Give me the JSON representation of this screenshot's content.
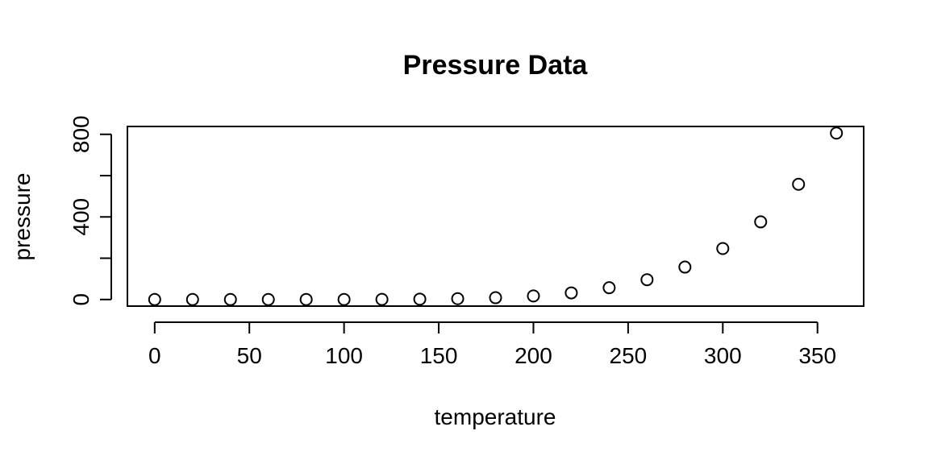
{
  "chart_data": {
    "type": "scatter",
    "title": "Pressure Data",
    "xlabel": "temperature",
    "ylabel": "pressure",
    "xlim": [
      -14.4,
      374.4
    ],
    "ylim": [
      -32.0,
      838.0
    ],
    "x_ticks": [
      0,
      50,
      100,
      150,
      200,
      250,
      300,
      350
    ],
    "y_ticks": [
      0,
      200,
      400,
      600,
      800
    ],
    "y_tick_labels": [
      "0",
      "",
      "400",
      "",
      "800"
    ],
    "grid": false,
    "legend": "none",
    "series": [
      {
        "x": [
          0,
          20,
          40,
          60,
          80,
          100,
          120,
          140,
          160,
          180,
          200,
          220,
          240,
          260,
          280,
          300,
          320,
          340,
          360
        ],
        "y": [
          0.0002,
          0.0012,
          0.006,
          0.03,
          0.09,
          0.27,
          0.75,
          1.85,
          4.2,
          8.8,
          17.3,
          32.1,
          57.0,
          96.0,
          157.0,
          247.0,
          376.0,
          558.0,
          806.0
        ]
      }
    ]
  }
}
